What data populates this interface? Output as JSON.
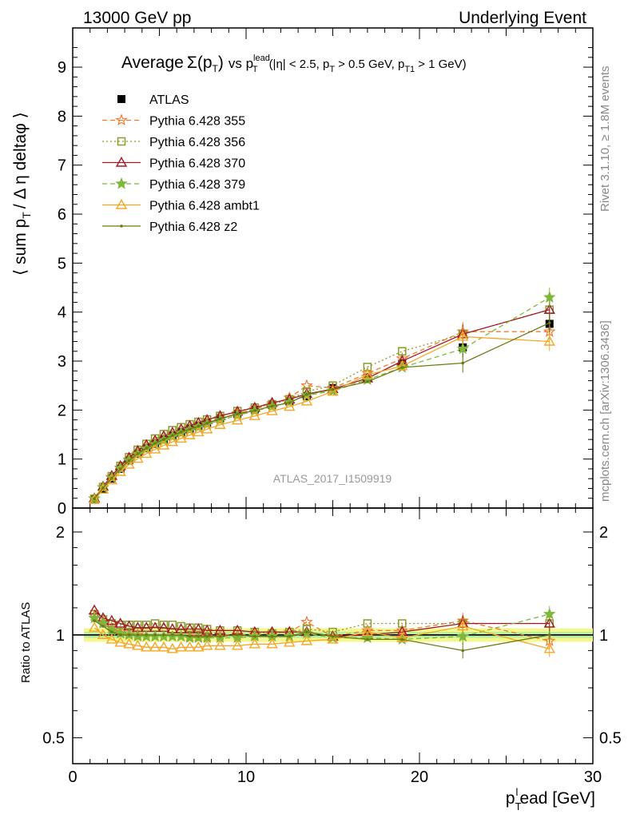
{
  "header": {
    "left": "13000 GeV pp",
    "right": "Underlying Event"
  },
  "side": {
    "rivet": "Rivet 3.1.10, ≥ 1.8M events",
    "mcplots": "mcplots.cern.ch [arXiv:1306.3436]"
  },
  "chart_data": [
    {
      "type": "line",
      "title": "Average Σ(pT) vs pT^lead (|η| < 2.5, pT > 0.5 GeV, pT1 > 1 GeV)",
      "title_parts": {
        "main": "Average",
        "sigma": "Σ(p",
        "sigma_sub": "T",
        "sigma_close": ")",
        "vs": "vs p",
        "lead_sup": "lead",
        "lead_sub": "T",
        "range": "(|η| < 2.5, p",
        "range_sub": "T",
        "range2": "> 0.5 GeV, p",
        "range2_sub": "T1",
        "range3": "> 1 GeV)"
      },
      "ylabel": "⟨ sum pT / Δη deltaφ ⟩",
      "ylabel_parts": {
        "a": "⟨ sum p",
        "sub": "T",
        "b": "/ Δ η deltaφ ⟩"
      },
      "watermark": "ATLAS_2017_I1509919",
      "xlim": [
        0,
        30
      ],
      "ylim": [
        0,
        9.8
      ],
      "yticks": [
        0,
        1,
        2,
        3,
        4,
        5,
        6,
        7,
        8,
        9
      ],
      "x": [
        1.25,
        1.75,
        2.25,
        2.75,
        3.25,
        3.75,
        4.25,
        4.75,
        5.25,
        5.75,
        6.25,
        6.75,
        7.25,
        7.75,
        8.5,
        9.5,
        10.5,
        11.5,
        12.5,
        13.5,
        15.0,
        17.0,
        19.0,
        22.5,
        27.5
      ],
      "series": [
        {
          "name": "ATLAS",
          "color": "#000000",
          "marker": "square-filled",
          "line": "none",
          "values": [
            0.17,
            0.39,
            0.6,
            0.8,
            0.97,
            1.11,
            1.22,
            1.31,
            1.4,
            1.48,
            1.55,
            1.62,
            1.68,
            1.74,
            1.83,
            1.92,
            2.01,
            2.1,
            2.18,
            2.28,
            2.45,
            2.66,
            2.95,
            3.28,
            3.76
          ]
        },
        {
          "name": "Pythia 6.428 355",
          "color": "#f07a30",
          "marker": "star-open",
          "line": "dashed",
          "values": [
            0.19,
            0.42,
            0.63,
            0.82,
            0.99,
            1.12,
            1.23,
            1.32,
            1.4,
            1.47,
            1.54,
            1.61,
            1.67,
            1.74,
            1.83,
            1.93,
            2.02,
            2.13,
            2.25,
            2.5,
            2.45,
            2.75,
            3.05,
            3.6,
            3.6
          ]
        },
        {
          "name": "Pythia 6.428 356",
          "color": "#8a9c28",
          "marker": "square-open",
          "line": "dotted",
          "values": [
            0.19,
            0.43,
            0.65,
            0.86,
            1.04,
            1.19,
            1.31,
            1.42,
            1.51,
            1.59,
            1.65,
            1.71,
            1.76,
            1.81,
            1.88,
            1.98,
            2.05,
            2.12,
            2.22,
            2.38,
            2.5,
            2.88,
            3.2,
            3.55,
            4.05
          ]
        },
        {
          "name": "Pythia 6.428 370",
          "color": "#a01c24",
          "marker": "triangle-open",
          "line": "solid",
          "values": [
            0.2,
            0.44,
            0.66,
            0.86,
            1.03,
            1.17,
            1.29,
            1.38,
            1.47,
            1.54,
            1.61,
            1.68,
            1.74,
            1.8,
            1.88,
            1.97,
            2.05,
            2.15,
            2.22,
            2.33,
            2.43,
            2.65,
            3.0,
            3.55,
            4.05
          ]
        },
        {
          "name": "Pythia 6.428 379",
          "color": "#7db83a",
          "marker": "star-filled",
          "line": "dashed",
          "values": [
            0.19,
            0.42,
            0.62,
            0.81,
            0.97,
            1.1,
            1.21,
            1.3,
            1.38,
            1.46,
            1.53,
            1.59,
            1.65,
            1.71,
            1.79,
            1.89,
            1.98,
            2.07,
            2.16,
            2.3,
            2.39,
            2.62,
            2.87,
            3.25,
            4.3
          ]
        },
        {
          "name": "Pythia 6.428 ambt1",
          "color": "#f5a623",
          "marker": "triangle-open",
          "line": "solid",
          "values": [
            0.17,
            0.38,
            0.57,
            0.74,
            0.89,
            1.01,
            1.11,
            1.2,
            1.28,
            1.35,
            1.42,
            1.49,
            1.55,
            1.61,
            1.7,
            1.79,
            1.88,
            1.98,
            2.07,
            2.18,
            2.38,
            2.72,
            2.9,
            3.5,
            3.4
          ]
        },
        {
          "name": "Pythia 6.428 z2",
          "color": "#6d7a12",
          "marker": "dot",
          "line": "solid",
          "values": [
            0.19,
            0.41,
            0.61,
            0.8,
            0.97,
            1.11,
            1.22,
            1.32,
            1.4,
            1.48,
            1.55,
            1.61,
            1.67,
            1.73,
            1.82,
            1.92,
            1.99,
            2.08,
            2.15,
            2.32,
            2.42,
            2.58,
            2.87,
            2.96,
            3.78
          ]
        }
      ]
    },
    {
      "type": "line",
      "ylabel": "Ratio to ATLAS",
      "xlabel": "pTlead [GeV]",
      "xlabel_parts": {
        "a": "p",
        "sub": "T",
        "sup": "l",
        "b": "ead [GeV]"
      },
      "xlim": [
        0,
        30
      ],
      "xticks": [
        0,
        10,
        20,
        30
      ],
      "ylim": [
        0.42,
        2.35
      ],
      "yticks_left": [
        0.5,
        1,
        2
      ],
      "yticks_labels": [
        "0.5",
        "1",
        "2"
      ],
      "band": {
        "inner": [
          0.98,
          1.02
        ],
        "outer": [
          0.955,
          1.045
        ]
      },
      "x": [
        1.25,
        1.75,
        2.25,
        2.75,
        3.25,
        3.75,
        4.25,
        4.75,
        5.25,
        5.75,
        6.25,
        6.75,
        7.25,
        7.75,
        8.5,
        9.5,
        10.5,
        11.5,
        12.5,
        13.5,
        15.0,
        17.0,
        19.0,
        22.5,
        27.5
      ],
      "series": [
        {
          "name": "Pythia 6.428 355",
          "color": "#f07a30",
          "marker": "star-open",
          "line": "dashed",
          "values": [
            1.14,
            1.09,
            1.05,
            1.02,
            1.01,
            1.0,
            0.99,
            0.99,
            0.99,
            0.99,
            0.99,
            0.99,
            0.99,
            0.99,
            1.0,
            1.0,
            1.0,
            1.01,
            1.02,
            1.09,
            0.99,
            1.03,
            1.03,
            1.1,
            0.96
          ]
        },
        {
          "name": "Pythia 6.428 356",
          "color": "#8a9c28",
          "marker": "square-open",
          "line": "dotted",
          "values": [
            1.15,
            1.11,
            1.08,
            1.07,
            1.07,
            1.07,
            1.07,
            1.08,
            1.07,
            1.07,
            1.06,
            1.05,
            1.05,
            1.04,
            1.03,
            1.03,
            1.02,
            1.01,
            1.02,
            1.04,
            1.02,
            1.08,
            1.08,
            1.08,
            1.08
          ]
        },
        {
          "name": "Pythia 6.428 370",
          "color": "#a01c24",
          "marker": "triangle-open",
          "line": "solid",
          "values": [
            1.18,
            1.12,
            1.1,
            1.08,
            1.06,
            1.05,
            1.05,
            1.05,
            1.05,
            1.04,
            1.04,
            1.04,
            1.04,
            1.03,
            1.03,
            1.03,
            1.02,
            1.02,
            1.02,
            1.02,
            0.99,
            1.0,
            1.02,
            1.08,
            1.08
          ]
        },
        {
          "name": "Pythia 6.428 379",
          "color": "#7db83a",
          "marker": "star-filled",
          "line": "dashed",
          "values": [
            1.12,
            1.08,
            1.03,
            1.01,
            1.0,
            0.99,
            0.99,
            0.99,
            0.99,
            0.99,
            0.99,
            0.98,
            0.98,
            0.98,
            0.98,
            0.98,
            0.99,
            0.99,
            0.99,
            1.01,
            0.98,
            0.98,
            0.97,
            0.99,
            1.15
          ]
        },
        {
          "name": "Pythia 6.428 ambt1",
          "color": "#f5a623",
          "marker": "triangle-open",
          "line": "solid",
          "values": [
            1.05,
            1.0,
            0.97,
            0.95,
            0.94,
            0.93,
            0.92,
            0.92,
            0.92,
            0.91,
            0.92,
            0.92,
            0.92,
            0.93,
            0.93,
            0.93,
            0.94,
            0.94,
            0.95,
            0.96,
            0.97,
            1.02,
            0.98,
            1.06,
            0.91
          ]
        },
        {
          "name": "Pythia 6.428 z2",
          "color": "#6d7a12",
          "marker": "dot",
          "line": "solid",
          "values": [
            1.1,
            1.06,
            1.02,
            1.0,
            1.0,
            1.0,
            1.0,
            1.0,
            1.0,
            1.0,
            1.0,
            0.99,
            0.99,
            0.99,
            0.99,
            1.0,
            0.99,
            0.99,
            0.99,
            1.02,
            0.99,
            0.97,
            0.97,
            0.9,
            1.0
          ]
        }
      ]
    }
  ]
}
